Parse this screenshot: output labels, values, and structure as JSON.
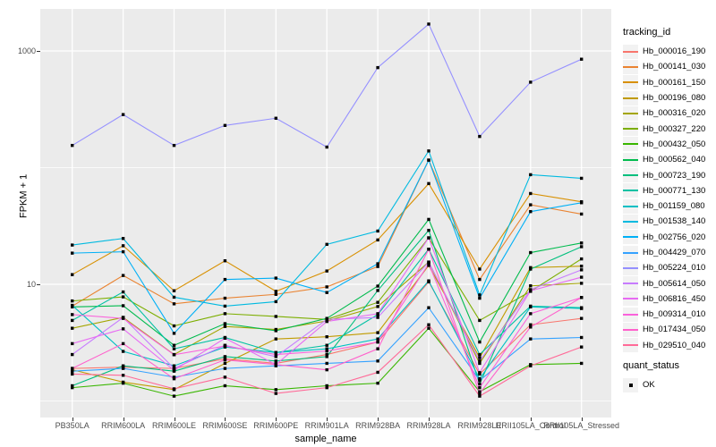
{
  "chart_data": {
    "type": "line",
    "title": "",
    "xlabel": "sample_name",
    "ylabel": "FPKM + 1",
    "y_scale": "log10",
    "grid": true,
    "legend_position": "right",
    "x_categories": [
      "PB350LA",
      "RRIM600LA",
      "RRIM600LE",
      "RRIM600SE",
      "RRIM600PE",
      "RRIM901LA",
      "RRIM928BA",
      "RRIM928LA",
      "RRIM928LE",
      "RRII105LA_Control",
      "RRII105LA_Stressed"
    ],
    "y_ticks": [
      {
        "value": 10,
        "label": "10"
      },
      {
        "value": 1000,
        "label": "1000"
      }
    ],
    "y_minor_gridlines": [
      1,
      100
    ],
    "ylim": [
      1,
      2000
    ],
    "point_marker": {
      "shape": "square",
      "color": "#000000",
      "size": 3.4
    },
    "series": [
      {
        "name": "Hb_000016_190",
        "color": "#F8766D",
        "values": [
          1.9,
          1.95,
          1.9,
          2.3,
          2.1,
          2.5,
          3.2,
          10.5,
          1.7,
          4.5,
          5.1
        ]
      },
      {
        "name": "Hb_000141_030",
        "color": "#EA8331",
        "values": [
          6.5,
          11.9,
          6.8,
          7.6,
          8.2,
          9.5,
          14.2,
          116,
          11,
          48,
          40
        ]
      },
      {
        "name": "Hb_000161_150",
        "color": "#D89000",
        "values": [
          12.1,
          21.4,
          8.8,
          15.9,
          8.7,
          13,
          24,
          73,
          13.5,
          60,
          51
        ]
      },
      {
        "name": "Hb_000196_080",
        "color": "#C09B00",
        "values": [
          1.85,
          1.45,
          1.25,
          2.1,
          3.4,
          3.55,
          3.85,
          14.5,
          2.35,
          13.9,
          14.3
        ]
      },
      {
        "name": "Hb_000316_020",
        "color": "#A3A500",
        "values": [
          4.2,
          5.2,
          2.5,
          4.35,
          4.1,
          4.85,
          6.45,
          15.5,
          2.1,
          9.7,
          10.2
        ]
      },
      {
        "name": "Hb_000327_220",
        "color": "#7CAE00",
        "values": [
          7.2,
          7.8,
          4.4,
          5.6,
          5.3,
          5.0,
          7.0,
          25,
          4.9,
          8.7,
          16.5
        ]
      },
      {
        "name": "Hb_000432_050",
        "color": "#39B600",
        "values": [
          1.3,
          1.42,
          1.1,
          1.35,
          1.25,
          1.35,
          1.42,
          4.2,
          1.2,
          2.05,
          2.1
        ]
      },
      {
        "name": "Hb_000562_040",
        "color": "#00BB4E",
        "values": [
          6.4,
          6.55,
          3.0,
          4.6,
          4.0,
          5.1,
          9.65,
          36,
          3.2,
          18.7,
          22.6
        ]
      },
      {
        "name": "Hb_000723_190",
        "color": "#00BF7D",
        "values": [
          1.35,
          2.0,
          1.8,
          2.4,
          2.2,
          2.4,
          8.85,
          29,
          1.4,
          13.5,
          21
        ]
      },
      {
        "name": "Hb_000771_130",
        "color": "#00C1A3",
        "values": [
          4.9,
          8.6,
          2.8,
          3.5,
          2.6,
          3.0,
          5.5,
          20,
          2.5,
          6.5,
          6.3
        ]
      },
      {
        "name": "Hb_001159_080",
        "color": "#00BFC4",
        "values": [
          6.6,
          2.66,
          2.0,
          2.9,
          2.6,
          2.8,
          3.4,
          10.7,
          1.55,
          6.4,
          6.2
        ]
      },
      {
        "name": "Hb_001538_140",
        "color": "#00BAE0",
        "values": [
          21.7,
          24.7,
          7.75,
          6.5,
          7.1,
          22,
          28.6,
          139,
          8.1,
          87,
          81
        ]
      },
      {
        "name": "Hb_002756_020",
        "color": "#00B0F6",
        "values": [
          18.5,
          19.0,
          3.8,
          11.0,
          11.3,
          8.5,
          15,
          116,
          7.6,
          42,
          50
        ]
      },
      {
        "name": "Hb_004429_070",
        "color": "#35A2FF",
        "values": [
          1.8,
          1.9,
          1.6,
          1.9,
          2.0,
          2.1,
          2.2,
          6.3,
          1.5,
          3.4,
          3.5
        ]
      },
      {
        "name": "Hb_005224_010",
        "color": "#9590FF",
        "values": [
          155,
          285,
          155,
          230,
          265,
          150,
          720,
          1700,
          185,
          540,
          850
        ]
      },
      {
        "name": "Hb_005614_050",
        "color": "#C77CFF",
        "values": [
          2.5,
          5.2,
          1.9,
          3.0,
          2.4,
          5.0,
          5.2,
          15.5,
          2.2,
          9.0,
          13.3
        ]
      },
      {
        "name": "Hb_006816_450",
        "color": "#E76BF3",
        "values": [
          3.1,
          4.15,
          1.83,
          3.45,
          2.05,
          4.8,
          5.6,
          25,
          1.75,
          8.8,
          11.5
        ]
      },
      {
        "name": "Hb_009314_010",
        "color": "#FA62DB",
        "values": [
          5.5,
          5.1,
          2.49,
          2.96,
          2.5,
          2.68,
          3.2,
          15,
          1.3,
          5.6,
          7.7
        ]
      },
      {
        "name": "Hb_017434_050",
        "color": "#FF61CC",
        "values": [
          1.9,
          3.1,
          1.55,
          2.25,
          2.05,
          1.85,
          2.8,
          20,
          1.16,
          4.3,
          7.7
        ]
      },
      {
        "name": "Hb_029510_040",
        "color": "#FF6A98",
        "values": [
          1.7,
          1.66,
          1.27,
          1.6,
          1.16,
          1.3,
          1.76,
          4.5,
          1.1,
          2.0,
          2.9
        ]
      }
    ]
  },
  "legend": {
    "tracking_title": "tracking_id",
    "quant_title": "quant_status",
    "quant_ok_label": "OK"
  },
  "colors": {
    "panel_bg": "#EBEBEB",
    "gridline": "#FFFFFF",
    "legend_key_bg": "#F2F2F2",
    "tick_text": "#4D4D4D",
    "marker": "#000000"
  }
}
